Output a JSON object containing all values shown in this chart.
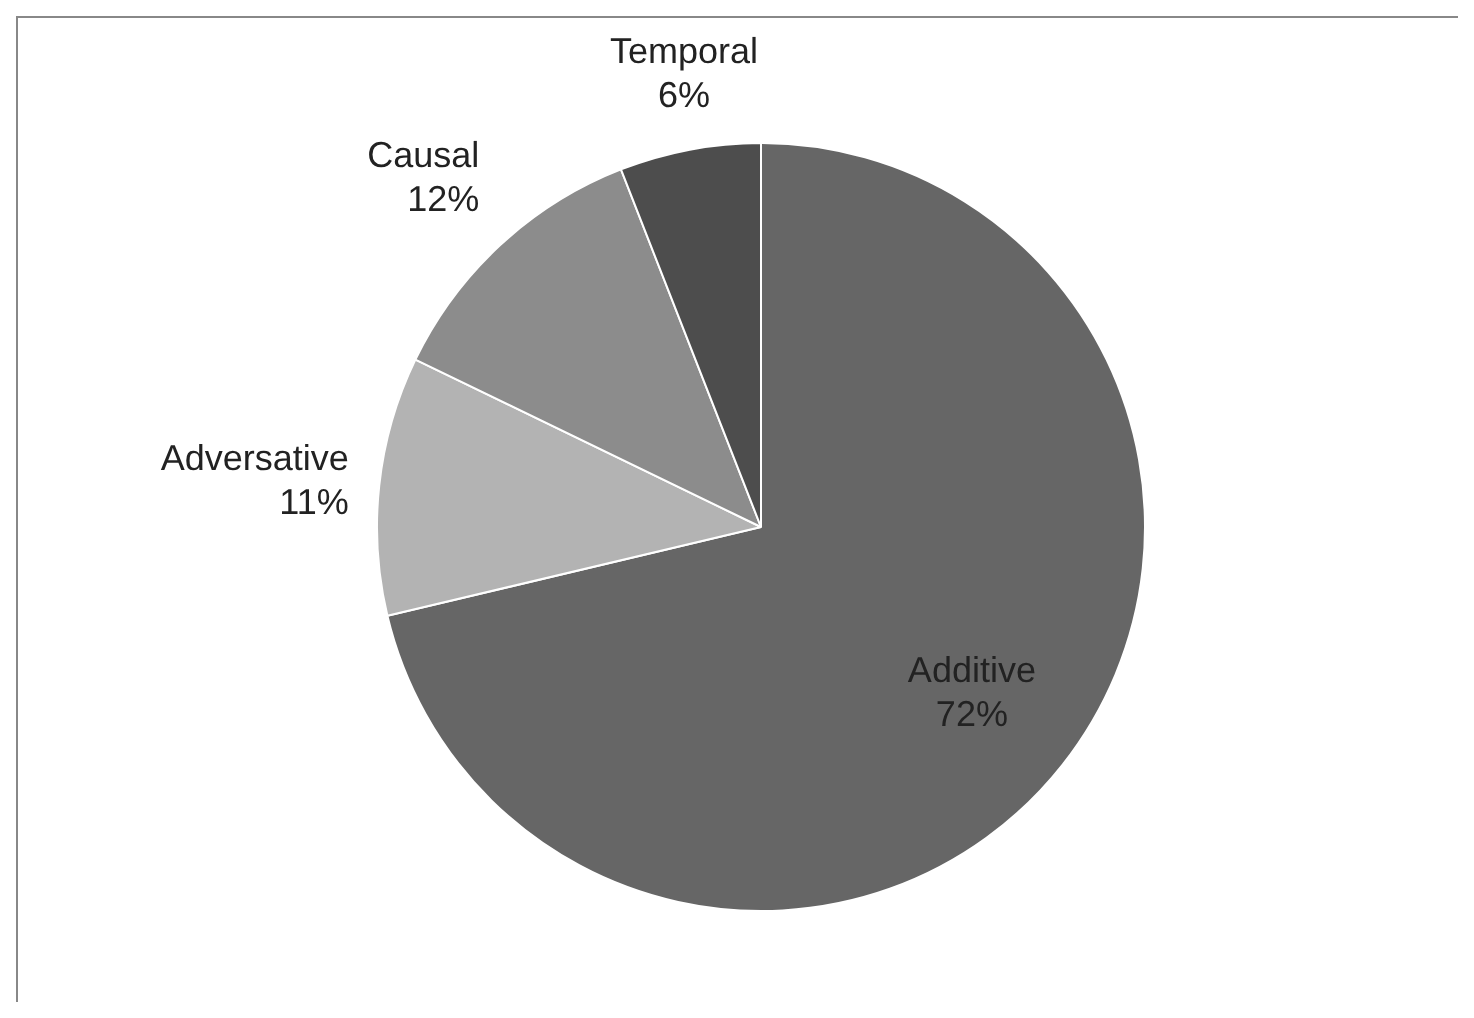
{
  "chart_data": {
    "type": "pie",
    "categories": [
      "Additive",
      "Adversative",
      "Causal",
      "Temporal"
    ],
    "values": [
      72,
      11,
      12,
      6
    ],
    "value_labels": [
      "72%",
      "11%",
      "12%",
      "6%"
    ],
    "colors": [
      "#666666",
      "#b3b3b3",
      "#8c8c8c",
      "#4d4d4d"
    ],
    "legend": false
  }
}
